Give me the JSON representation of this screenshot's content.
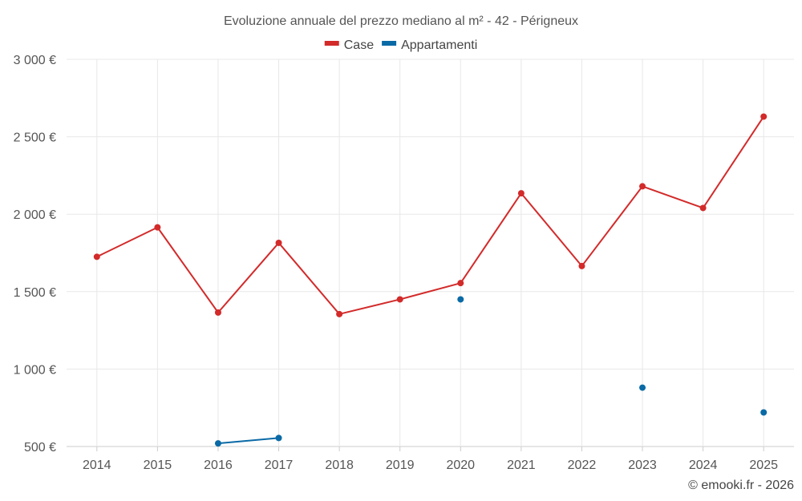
{
  "chart_data": {
    "type": "line",
    "title": "Evoluzione annuale del prezzo mediano al m² - 42 - Périgneux",
    "credit": "© emooki.fr - 2026",
    "categories": [
      "2014",
      "2015",
      "2016",
      "2017",
      "2018",
      "2019",
      "2020",
      "2021",
      "2022",
      "2023",
      "2024",
      "2025"
    ],
    "y_ticks": [
      500,
      1000,
      1500,
      2000,
      2500,
      3000
    ],
    "y_tick_labels": [
      "500 €",
      "1 000 €",
      "1 500 €",
      "2 000 €",
      "2 500 €",
      "3 000 €"
    ],
    "ylim": [
      500,
      3000
    ],
    "grid": true,
    "legend_position": "top-center",
    "series": [
      {
        "name": "Case",
        "color": "#d32a2a",
        "values": [
          1725,
          1915,
          1365,
          1815,
          1355,
          1450,
          1555,
          2135,
          1665,
          2180,
          2040,
          2630
        ]
      },
      {
        "name": "Appartamenti",
        "color": "#0a6aa6",
        "values": [
          null,
          null,
          520,
          555,
          null,
          null,
          1450,
          null,
          null,
          880,
          null,
          720
        ]
      }
    ]
  }
}
